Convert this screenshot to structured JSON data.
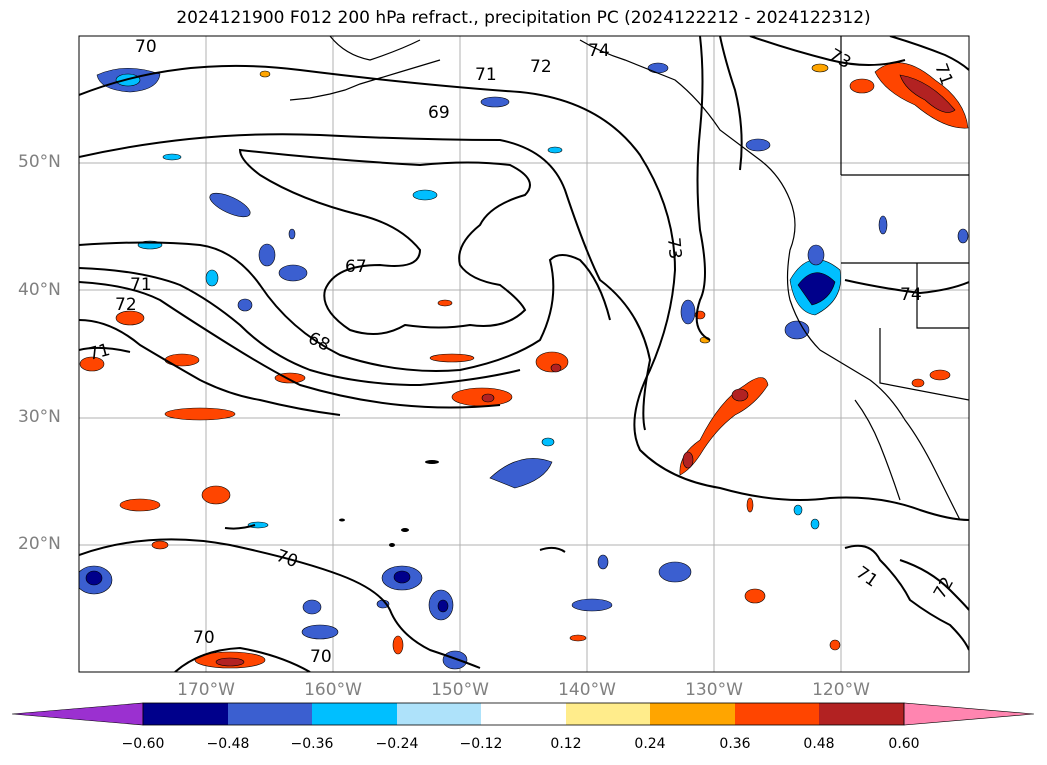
{
  "title": "2024121900 F012 200 hPa refract., precipitation PC (2024122212 - 2024122312)",
  "lat_labels": [
    "50°N",
    "40°N",
    "30°N",
    "20°N"
  ],
  "lon_labels": [
    "170°W",
    "160°W",
    "150°W",
    "140°W",
    "130°W",
    "120°W"
  ],
  "contour_labels": [
    "70",
    "74",
    "73",
    "72",
    "71",
    "69",
    "67",
    "71",
    "72",
    "71",
    "68",
    "73",
    "74",
    "70",
    "70",
    "70",
    "71",
    "72",
    "71"
  ],
  "colorbar": {
    "ticks": [
      "−0.60",
      "−0.48",
      "−0.36",
      "−0.24",
      "−0.12",
      "0.12",
      "0.24",
      "0.36",
      "0.48",
      "0.60"
    ],
    "colors": [
      "#9b30d0",
      "#00008b",
      "#3b5fd0",
      "#00bfff",
      "#aee2fa",
      "#ffffff",
      "#ffec8b",
      "#ffa500",
      "#ff4500",
      "#b22222",
      "#ff85b0"
    ]
  }
}
